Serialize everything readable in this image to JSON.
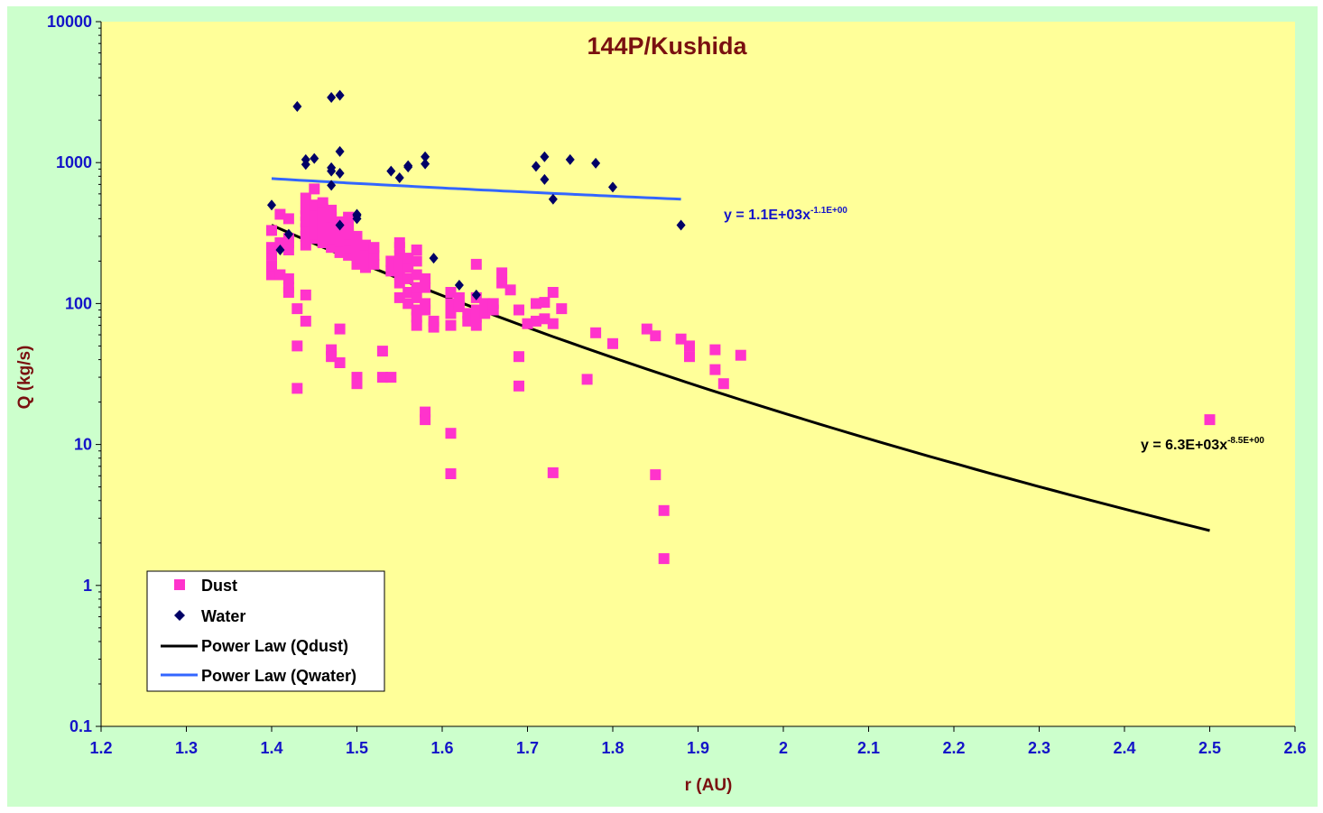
{
  "chart_data": {
    "type": "scatter",
    "title": "144P/Kushida",
    "xlabel": "r (AU)",
    "ylabel": "Q (kg/s)",
    "xlim": [
      1.2,
      2.6
    ],
    "ylim": [
      0.1,
      10000
    ],
    "yscale": "log",
    "x_ticks": [
      "1.2",
      "1.3",
      "1.4",
      "1.5",
      "1.6",
      "1.7",
      "1.8",
      "1.9",
      "2",
      "2.1",
      "2.2",
      "2.3",
      "2.4",
      "2.5",
      "2.6"
    ],
    "y_ticks": [
      "0.1",
      "1",
      "10",
      "100",
      "1000",
      "10000"
    ],
    "grid": false,
    "legend_position": "bottom-left",
    "colors": {
      "frame": "#ccffcc",
      "plot_area": "#ffff99",
      "dust": "#ff33cc",
      "water": "#000066",
      "fit_dust": "#000000",
      "fit_water": "#3366ff",
      "tick_text": "#1414c8",
      "title_text": "#7a1010"
    },
    "series": [
      {
        "name": "Dust",
        "marker": "square",
        "points": [
          [
            1.4,
            160
          ],
          [
            1.4,
            185
          ],
          [
            1.4,
            220
          ],
          [
            1.4,
            250
          ],
          [
            1.4,
            330
          ],
          [
            1.41,
            160
          ],
          [
            1.41,
            270
          ],
          [
            1.41,
            430
          ],
          [
            1.42,
            120
          ],
          [
            1.42,
            130
          ],
          [
            1.42,
            150
          ],
          [
            1.42,
            240
          ],
          [
            1.42,
            270
          ],
          [
            1.42,
            400
          ],
          [
            1.42,
            290
          ],
          [
            1.43,
            50
          ],
          [
            1.43,
            25
          ],
          [
            1.43,
            92
          ],
          [
            1.44,
            115
          ],
          [
            1.44,
            75
          ],
          [
            1.44,
            300
          ],
          [
            1.44,
            340
          ],
          [
            1.44,
            380
          ],
          [
            1.44,
            420
          ],
          [
            1.44,
            470
          ],
          [
            1.44,
            560
          ],
          [
            1.44,
            260
          ],
          [
            1.45,
            290
          ],
          [
            1.45,
            330
          ],
          [
            1.45,
            360
          ],
          [
            1.45,
            400
          ],
          [
            1.45,
            440
          ],
          [
            1.45,
            500
          ],
          [
            1.45,
            650
          ],
          [
            1.45,
            310
          ],
          [
            1.46,
            270
          ],
          [
            1.46,
            300
          ],
          [
            1.46,
            340
          ],
          [
            1.46,
            380
          ],
          [
            1.46,
            430
          ],
          [
            1.46,
            470
          ],
          [
            1.46,
            520
          ],
          [
            1.46,
            320
          ],
          [
            1.47,
            250
          ],
          [
            1.47,
            290
          ],
          [
            1.47,
            330
          ],
          [
            1.47,
            360
          ],
          [
            1.47,
            410
          ],
          [
            1.47,
            460
          ],
          [
            1.47,
            47
          ],
          [
            1.47,
            42
          ],
          [
            1.48,
            38
          ],
          [
            1.48,
            66
          ],
          [
            1.48,
            260
          ],
          [
            1.48,
            300
          ],
          [
            1.48,
            340
          ],
          [
            1.48,
            380
          ],
          [
            1.48,
            230
          ],
          [
            1.49,
            220
          ],
          [
            1.49,
            250
          ],
          [
            1.49,
            280
          ],
          [
            1.49,
            310
          ],
          [
            1.49,
            350
          ],
          [
            1.49,
            410
          ],
          [
            1.5,
            30
          ],
          [
            1.5,
            27
          ],
          [
            1.5,
            190
          ],
          [
            1.5,
            210
          ],
          [
            1.5,
            240
          ],
          [
            1.5,
            270
          ],
          [
            1.5,
            300
          ],
          [
            1.51,
            180
          ],
          [
            1.51,
            200
          ],
          [
            1.51,
            230
          ],
          [
            1.51,
            260
          ],
          [
            1.52,
            190
          ],
          [
            1.52,
            220
          ],
          [
            1.52,
            250
          ],
          [
            1.53,
            30
          ],
          [
            1.53,
            46
          ],
          [
            1.54,
            30
          ],
          [
            1.54,
            170
          ],
          [
            1.54,
            200
          ],
          [
            1.55,
            110
          ],
          [
            1.55,
            140
          ],
          [
            1.55,
            160
          ],
          [
            1.55,
            190
          ],
          [
            1.55,
            220
          ],
          [
            1.55,
            250
          ],
          [
            1.55,
            270
          ],
          [
            1.56,
            100
          ],
          [
            1.56,
            120
          ],
          [
            1.56,
            150
          ],
          [
            1.56,
            180
          ],
          [
            1.56,
            210
          ],
          [
            1.57,
            80
          ],
          [
            1.57,
            70
          ],
          [
            1.57,
            90
          ],
          [
            1.57,
            110
          ],
          [
            1.57,
            130
          ],
          [
            1.57,
            160
          ],
          [
            1.57,
            200
          ],
          [
            1.57,
            240
          ],
          [
            1.58,
            17
          ],
          [
            1.58,
            15
          ],
          [
            1.58,
            90
          ],
          [
            1.58,
            100
          ],
          [
            1.58,
            130
          ],
          [
            1.58,
            150
          ],
          [
            1.59,
            68
          ],
          [
            1.59,
            75
          ],
          [
            1.61,
            6.2
          ],
          [
            1.61,
            12
          ],
          [
            1.61,
            70
          ],
          [
            1.61,
            85
          ],
          [
            1.61,
            100
          ],
          [
            1.61,
            120
          ],
          [
            1.62,
            95
          ],
          [
            1.62,
            110
          ],
          [
            1.63,
            75
          ],
          [
            1.63,
            85
          ],
          [
            1.64,
            70
          ],
          [
            1.64,
            80
          ],
          [
            1.64,
            90
          ],
          [
            1.64,
            110
          ],
          [
            1.64,
            190
          ],
          [
            1.65,
            85
          ],
          [
            1.65,
            100
          ],
          [
            1.66,
            90
          ],
          [
            1.66,
            100
          ],
          [
            1.67,
            140
          ],
          [
            1.67,
            165
          ],
          [
            1.68,
            125
          ],
          [
            1.69,
            26
          ],
          [
            1.69,
            42
          ],
          [
            1.69,
            90
          ],
          [
            1.7,
            72
          ],
          [
            1.71,
            75
          ],
          [
            1.71,
            100
          ],
          [
            1.72,
            78
          ],
          [
            1.72,
            102
          ],
          [
            1.73,
            6.3
          ],
          [
            1.73,
            72
          ],
          [
            1.73,
            120
          ],
          [
            1.74,
            92
          ],
          [
            1.77,
            29
          ],
          [
            1.78,
            62
          ],
          [
            1.8,
            52
          ],
          [
            1.84,
            66
          ],
          [
            1.85,
            59
          ],
          [
            1.85,
            6.1
          ],
          [
            1.86,
            3.4
          ],
          [
            1.86,
            1.55
          ],
          [
            1.88,
            56
          ],
          [
            1.89,
            50
          ],
          [
            1.89,
            42
          ],
          [
            1.92,
            47
          ],
          [
            1.92,
            34
          ],
          [
            1.93,
            27
          ],
          [
            1.95,
            43
          ],
          [
            2.5,
            15
          ]
        ]
      },
      {
        "name": "Water",
        "marker": "diamond",
        "points": [
          [
            1.4,
            500
          ],
          [
            1.41,
            240
          ],
          [
            1.42,
            310
          ],
          [
            1.43,
            2500
          ],
          [
            1.44,
            1050
          ],
          [
            1.44,
            970
          ],
          [
            1.45,
            1070
          ],
          [
            1.47,
            2900
          ],
          [
            1.47,
            920
          ],
          [
            1.47,
            870
          ],
          [
            1.48,
            3000
          ],
          [
            1.48,
            1200
          ],
          [
            1.48,
            840
          ],
          [
            1.47,
            690
          ],
          [
            1.48,
            360
          ],
          [
            1.5,
            420
          ],
          [
            1.5,
            400
          ],
          [
            1.5,
            430
          ],
          [
            1.54,
            870
          ],
          [
            1.55,
            780
          ],
          [
            1.56,
            930
          ],
          [
            1.56,
            950
          ],
          [
            1.58,
            1100
          ],
          [
            1.58,
            980
          ],
          [
            1.59,
            210
          ],
          [
            1.62,
            135
          ],
          [
            1.64,
            115
          ],
          [
            1.71,
            940
          ],
          [
            1.72,
            1100
          ],
          [
            1.72,
            760
          ],
          [
            1.73,
            550
          ],
          [
            1.75,
            1050
          ],
          [
            1.78,
            990
          ],
          [
            1.8,
            670
          ],
          [
            1.88,
            360
          ]
        ]
      },
      {
        "name": "Power Law (Qdust)",
        "type": "line",
        "x_range": [
          1.4,
          2.5
        ],
        "coefficient": 6300,
        "exponent": -8.5,
        "label": "y = 6.3E+03x",
        "label_exponent": "-8.5E+00"
      },
      {
        "name": "Power Law (Qwater)",
        "type": "line",
        "x_range": [
          1.4,
          1.88
        ],
        "coefficient": 1100,
        "exponent": -1.1,
        "label": "y = 1.1E+03x",
        "label_exponent": "-1.1E+00"
      }
    ]
  }
}
